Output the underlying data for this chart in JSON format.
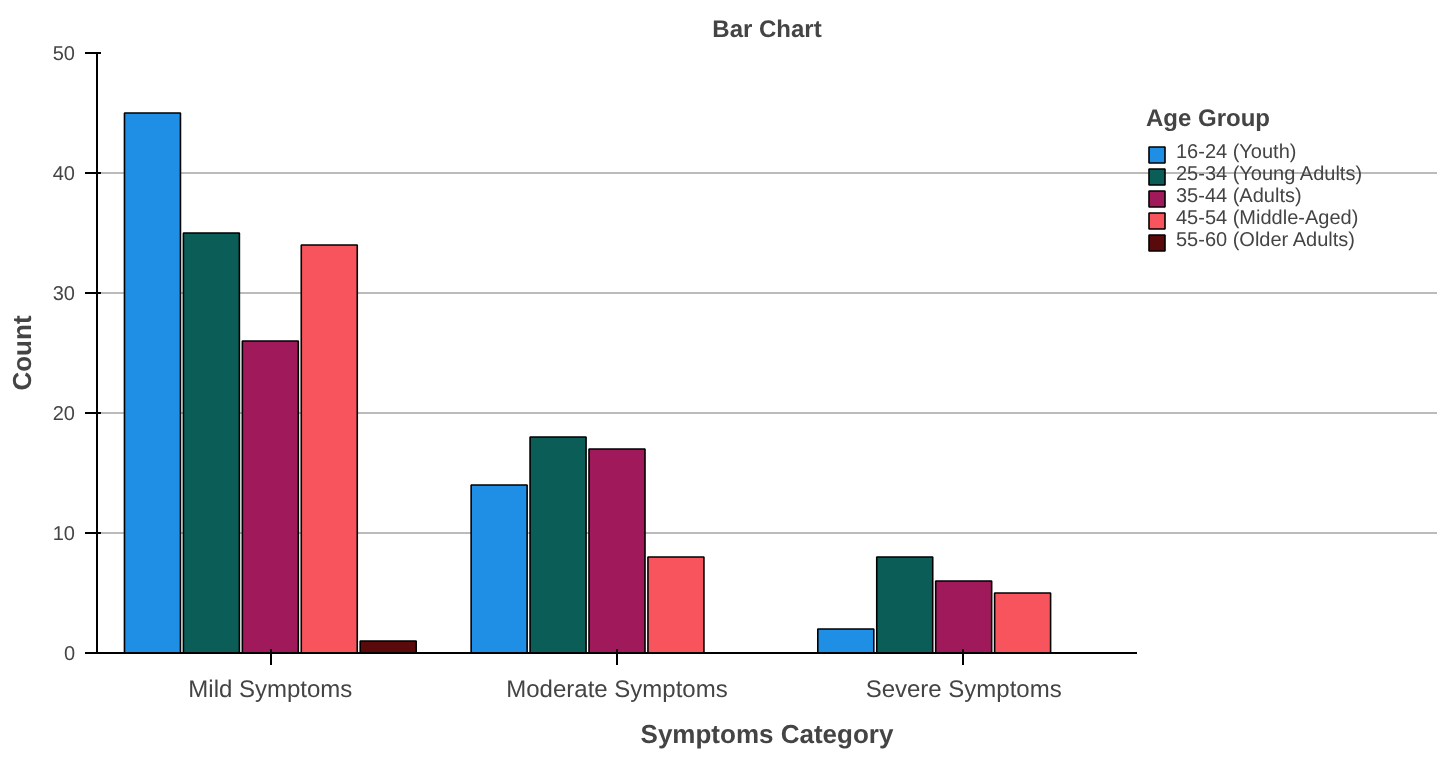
{
  "chart_data": {
    "type": "bar",
    "title": "Bar Chart",
    "xlabel": "Symptoms Category",
    "ylabel": "Count",
    "legend_title": "Age Group",
    "categories": [
      "Mild Symptoms",
      "Moderate Symptoms",
      "Severe Symptoms"
    ],
    "series": [
      {
        "name": "16-24 (Youth)",
        "color": "#1f8fe6",
        "values": [
          45,
          14,
          2
        ]
      },
      {
        "name": "25-34 (Young Adults)",
        "color": "#0b5e57",
        "values": [
          35,
          18,
          8
        ]
      },
      {
        "name": "35-44 (Adults)",
        "color": "#a0195a",
        "values": [
          26,
          17,
          6
        ]
      },
      {
        "name": "45-54 (Middle-Aged)",
        "color": "#f8545d",
        "values": [
          34,
          8,
          5
        ]
      },
      {
        "name": "55-60 (Older Adults)",
        "color": "#5a0a0a",
        "values": [
          1,
          null,
          null
        ]
      }
    ],
    "ylim": [
      0,
      50
    ],
    "yticks": [
      0,
      10,
      20,
      30,
      40,
      50
    ],
    "grid": "y",
    "legend": "right"
  }
}
